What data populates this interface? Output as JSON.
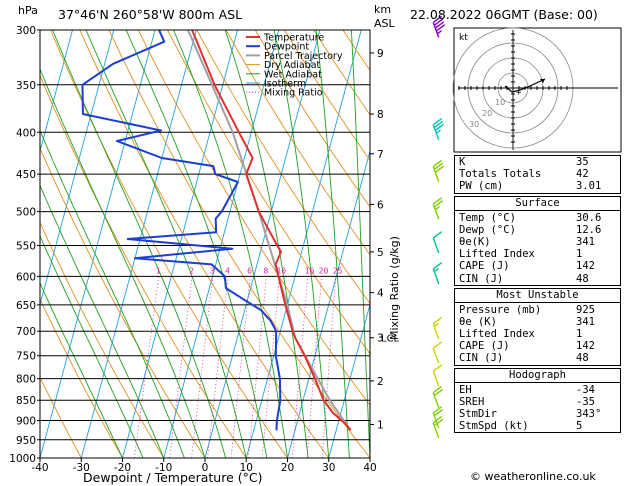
{
  "header": {
    "hpa_label": "hPa",
    "location": "37°46'N 260°58'W 800m ASL",
    "km_label": "km",
    "asl_label": "ASL",
    "datetime": "22.08.2022 06GMT (Base: 00)"
  },
  "chart_data": {
    "type": "skew-t",
    "xlabel": "Dewpoint / Temperature (°C)",
    "right_axis_label": "Mixing Ratio (g/kg)",
    "x_ticks": [
      -40,
      -30,
      -20,
      -10,
      0,
      10,
      20,
      30,
      40
    ],
    "pressure_levels": [
      300,
      350,
      400,
      450,
      500,
      550,
      600,
      650,
      700,
      750,
      800,
      850,
      900,
      950,
      1000
    ],
    "xlim": [
      -40,
      40
    ],
    "ylim_hpa": [
      1000,
      300
    ],
    "km_ticks": [
      {
        "label": "9",
        "p": 320
      },
      {
        "label": "8",
        "p": 380
      },
      {
        "label": "7",
        "p": 425
      },
      {
        "label": "6",
        "p": 490
      },
      {
        "label": "5",
        "p": 560
      },
      {
        "label": "4",
        "p": 628
      },
      {
        "label": "3",
        "p": 713
      },
      {
        "label": "2",
        "p": 805
      },
      {
        "label": "1",
        "p": 910
      }
    ],
    "lcl_label": "LCL",
    "lcl_p": 713,
    "mixing_ratio_labels": [
      "1",
      "2",
      "3",
      "4",
      "6",
      "8",
      "10",
      "16",
      "20",
      "25"
    ],
    "mixing_ratio_values": [
      1,
      2,
      3,
      4,
      6,
      8,
      10,
      16,
      20,
      25
    ],
    "legend": [
      "Temperature",
      "Dewpoint",
      "Parcel Trajectory",
      "Dry Adiabat",
      "Wet Adiabat",
      "Isotherm",
      "Mixing Ratio"
    ],
    "temperature": [
      {
        "p": 925,
        "t": 33.5
      },
      {
        "p": 910,
        "t": 32
      },
      {
        "p": 880,
        "t": 28
      },
      {
        "p": 850,
        "t": 25
      },
      {
        "p": 800,
        "t": 21.5
      },
      {
        "p": 750,
        "t": 17.5
      },
      {
        "p": 713,
        "t": 14
      },
      {
        "p": 700,
        "t": 13
      },
      {
        "p": 650,
        "t": 9.5
      },
      {
        "p": 600,
        "t": 6
      },
      {
        "p": 580,
        "t": 4.5
      },
      {
        "p": 560,
        "t": 5
      },
      {
        "p": 545,
        "t": 3
      },
      {
        "p": 500,
        "t": -3
      },
      {
        "p": 450,
        "t": -8.5
      },
      {
        "p": 430,
        "t": -8
      },
      {
        "p": 400,
        "t": -13
      },
      {
        "p": 350,
        "t": -22
      },
      {
        "p": 300,
        "t": -31
      }
    ],
    "dewpoint": [
      {
        "p": 925,
        "t": 15.5
      },
      {
        "p": 900,
        "t": 15
      },
      {
        "p": 850,
        "t": 14.5
      },
      {
        "p": 800,
        "t": 13
      },
      {
        "p": 750,
        "t": 10.5
      },
      {
        "p": 700,
        "t": 9
      },
      {
        "p": 680,
        "t": 7
      },
      {
        "p": 660,
        "t": 4
      },
      {
        "p": 640,
        "t": -1
      },
      {
        "p": 620,
        "t": -6
      },
      {
        "p": 600,
        "t": -7
      },
      {
        "p": 580,
        "t": -11
      },
      {
        "p": 570,
        "t": -30
      },
      {
        "p": 555,
        "t": -7
      },
      {
        "p": 540,
        "t": -33
      },
      {
        "p": 530,
        "t": -12
      },
      {
        "p": 510,
        "t": -13
      },
      {
        "p": 500,
        "t": -12
      },
      {
        "p": 460,
        "t": -10
      },
      {
        "p": 450,
        "t": -16
      },
      {
        "p": 440,
        "t": -17
      },
      {
        "p": 430,
        "t": -30
      },
      {
        "p": 410,
        "t": -42
      },
      {
        "p": 398,
        "t": -32
      },
      {
        "p": 380,
        "t": -52
      },
      {
        "p": 350,
        "t": -54
      },
      {
        "p": 330,
        "t": -48
      },
      {
        "p": 310,
        "t": -37
      },
      {
        "p": 300,
        "t": -39
      }
    ],
    "parcel": [
      {
        "p": 925,
        "t": 33.5
      },
      {
        "p": 850,
        "t": 26.5
      },
      {
        "p": 713,
        "t": 14
      },
      {
        "p": 650,
        "t": 10
      },
      {
        "p": 600,
        "t": 6
      },
      {
        "p": 500,
        "t": -3
      },
      {
        "p": 400,
        "t": -14.5
      },
      {
        "p": 300,
        "t": -32
      }
    ],
    "wind_barbs": [
      {
        "p": 925,
        "spd": 20,
        "color": "#7fcf00"
      },
      {
        "p": 900,
        "spd": 20,
        "color": "#7fcf00"
      },
      {
        "p": 850,
        "spd": 20,
        "color": "#7fcf00"
      },
      {
        "p": 800,
        "spd": 10,
        "color": "#d0d000"
      },
      {
        "p": 750,
        "spd": 10,
        "color": "#d0d000"
      },
      {
        "p": 700,
        "spd": 15,
        "color": "#d0d000"
      },
      {
        "p": 600,
        "spd": 15,
        "color": "#00c090"
      },
      {
        "p": 550,
        "spd": 10,
        "color": "#00c090"
      },
      {
        "p": 500,
        "spd": 25,
        "color": "#7fcf00"
      },
      {
        "p": 450,
        "spd": 30,
        "color": "#7fcf00"
      },
      {
        "p": 400,
        "spd": 35,
        "color": "#00c0c0"
      },
      {
        "p": 300,
        "spd": 45,
        "color": "#8a00c0"
      }
    ]
  },
  "hodograph": {
    "label": "kt",
    "ring_labels": [
      "10",
      "20",
      "30"
    ]
  },
  "indices": {
    "rows": [
      {
        "label": "K",
        "value": "35"
      },
      {
        "label": "Totals Totals",
        "value": "42"
      },
      {
        "label": "PW (cm)",
        "value": "3.01"
      }
    ]
  },
  "surface": {
    "title": "Surface",
    "rows": [
      {
        "label": "Temp (°C)",
        "value": "30.6"
      },
      {
        "label": "Dewp (°C)",
        "value": "12.6"
      },
      {
        "label": "θe(K)",
        "value": "341"
      },
      {
        "label": "Lifted Index",
        "value": "1"
      },
      {
        "label": "CAPE (J)",
        "value": "142"
      },
      {
        "label": "CIN (J)",
        "value": "48"
      }
    ]
  },
  "most_unstable": {
    "title": "Most Unstable",
    "rows": [
      {
        "label": "Pressure (mb)",
        "value": "925"
      },
      {
        "label": "θe (K)",
        "value": "341"
      },
      {
        "label": "Lifted Index",
        "value": "1"
      },
      {
        "label": "CAPE (J)",
        "value": "142"
      },
      {
        "label": "CIN (J)",
        "value": "48"
      }
    ]
  },
  "hodograph_box": {
    "title": "Hodograph",
    "rows": [
      {
        "label": "EH",
        "value": "-34"
      },
      {
        "label": "SREH",
        "value": "-35"
      },
      {
        "label": "StmDir",
        "value": "343°"
      },
      {
        "label": "StmSpd (kt)",
        "value": "5"
      }
    ]
  },
  "footer": "© weatheronline.co.uk",
  "colors": {
    "temperature": "#e03030",
    "dewpoint": "#1a3fd0",
    "parcel": "#a0a0a0",
    "dry_adiabat": "#e09020",
    "wet_adiabat": "#20a020",
    "isotherm": "#20a0e0",
    "mixing_ratio": "#e020a0"
  }
}
